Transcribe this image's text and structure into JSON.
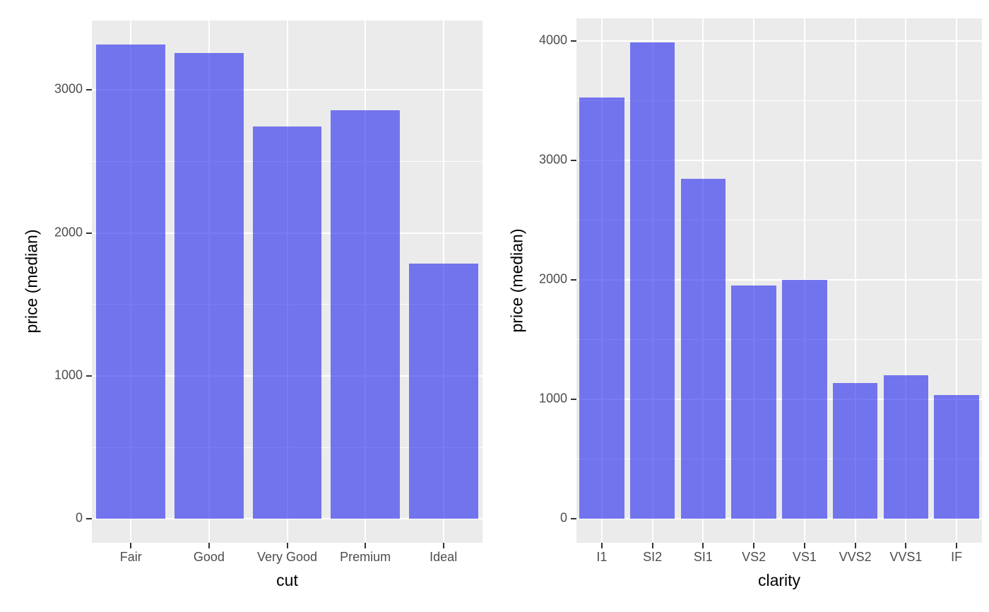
{
  "figure": {
    "description": "Two side-by-side ggplot-style bar charts of diamond median price by cut and by clarity",
    "background_color": "#FFFFFF"
  },
  "colors": {
    "panel_background": "#EBEBEB",
    "gridline": "#FFFFFF",
    "bar_fill": "rgba(33,36,240,0.6)",
    "bar_fill_flat": "#7476EE",
    "tick_label": "#4D4D4D",
    "axis_title": "#000000",
    "tick_mark": "#333333"
  },
  "chart_data": [
    {
      "type": "bar",
      "title": "",
      "categories": [
        "Fair",
        "Good",
        "Very Good",
        "Premium",
        "Ideal"
      ],
      "values": [
        3320,
        3260,
        2745,
        2860,
        1785
      ],
      "xlabel": "cut",
      "ylabel": "price (median)",
      "y_ticks": [
        0,
        1000,
        2000,
        3000
      ],
      "y_tick_labels": [
        "0",
        "1000",
        "2000",
        "3000"
      ],
      "y_minor_ticks": [
        500,
        1500,
        2500
      ],
      "ylim": [
        -166,
        3486
      ],
      "grid": "major+minor, white on grey panel",
      "legend": "none"
    },
    {
      "type": "bar",
      "title": "",
      "categories": [
        "I1",
        "SI2",
        "SI1",
        "VS2",
        "VS1",
        "VVS2",
        "VVS1",
        "IF"
      ],
      "values": [
        3530,
        3990,
        2845,
        1955,
        2000,
        1140,
        1200,
        1040
      ],
      "xlabel": "clarity",
      "ylabel": "price (median)",
      "y_ticks": [
        0,
        1000,
        2000,
        3000,
        4000
      ],
      "y_tick_labels": [
        "0",
        "1000",
        "2000",
        "3000",
        "4000"
      ],
      "y_minor_ticks": [
        500,
        1500,
        2500,
        3500
      ],
      "ylim": [
        -199.5,
        4189.5
      ],
      "grid": "major+minor, white on grey panel",
      "legend": "none"
    }
  ]
}
